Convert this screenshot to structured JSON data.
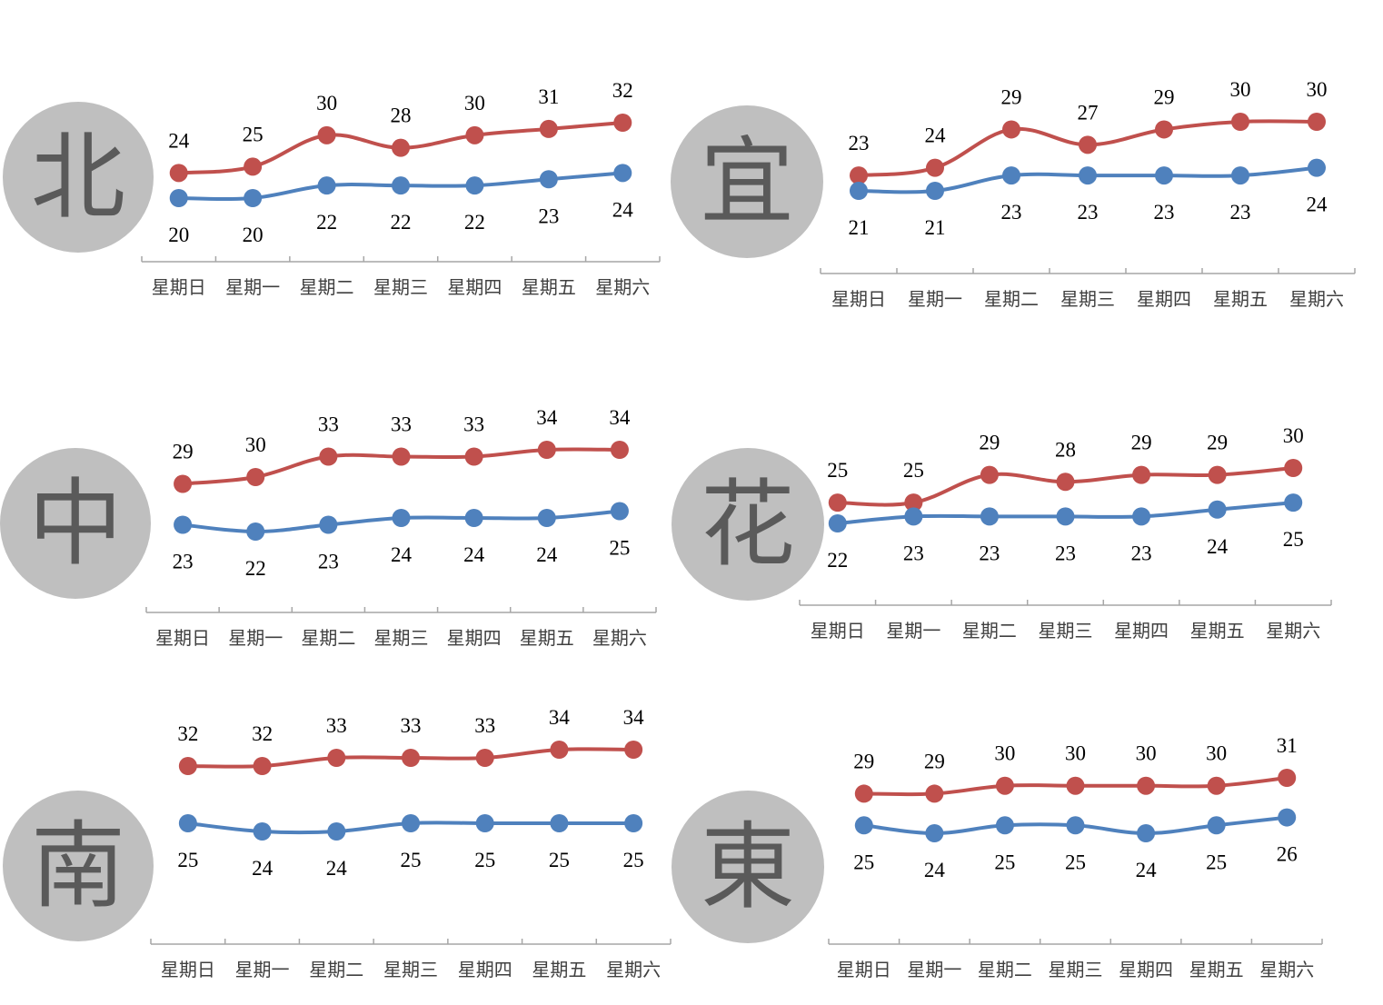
{
  "colors": {
    "high": "#c0504d",
    "low": "#4f81bd",
    "circle": "#bfbfbf",
    "circle_text": "#5a5a5a",
    "axis": "#a6a6a6",
    "label_text": "#000000",
    "tick_text": "#404040"
  },
  "weekdays": [
    "星期日",
    "星期一",
    "星期二",
    "星期三",
    "星期四",
    "星期五",
    "星期六"
  ],
  "chart_data": [
    {
      "type": "line",
      "region": "北",
      "categories": [
        "星期日",
        "星期一",
        "星期二",
        "星期三",
        "星期四",
        "星期五",
        "星期六"
      ],
      "series": [
        {
          "values": [
            24,
            25,
            30,
            28,
            30,
            31,
            32
          ]
        },
        {
          "values": [
            20,
            20,
            22,
            22,
            22,
            23,
            24
          ]
        }
      ],
      "ylim": [
        18,
        34
      ],
      "grid": false,
      "smooth": true
    },
    {
      "type": "line",
      "region": "宜",
      "categories": [
        "星期日",
        "星期一",
        "星期二",
        "星期三",
        "星期四",
        "星期五",
        "星期六"
      ],
      "series": [
        {
          "values": [
            23,
            24,
            29,
            27,
            29,
            30,
            30
          ]
        },
        {
          "values": [
            21,
            21,
            23,
            23,
            23,
            23,
            24
          ]
        }
      ],
      "ylim": [
        18,
        34
      ],
      "grid": false,
      "smooth": true
    },
    {
      "type": "line",
      "region": "中",
      "categories": [
        "星期日",
        "星期一",
        "星期二",
        "星期三",
        "星期四",
        "星期五",
        "星期六"
      ],
      "series": [
        {
          "values": [
            29,
            30,
            33,
            33,
            33,
            34,
            34
          ]
        },
        {
          "values": [
            23,
            22,
            23,
            24,
            24,
            24,
            25
          ]
        }
      ],
      "ylim": [
        18,
        38
      ],
      "grid": false,
      "smooth": true
    },
    {
      "type": "line",
      "region": "花",
      "categories": [
        "星期日",
        "星期一",
        "星期二",
        "星期三",
        "星期四",
        "星期五",
        "星期六"
      ],
      "series": [
        {
          "values": [
            25,
            25,
            29,
            28,
            29,
            29,
            30
          ]
        },
        {
          "values": [
            22,
            23,
            23,
            23,
            23,
            24,
            25
          ]
        }
      ],
      "ylim": [
        16,
        34
      ],
      "grid": false,
      "smooth": true
    },
    {
      "type": "line",
      "region": "南",
      "categories": [
        "星期日",
        "星期一",
        "星期二",
        "星期三",
        "星期四",
        "星期五",
        "星期六"
      ],
      "series": [
        {
          "values": [
            32,
            32,
            33,
            33,
            33,
            34,
            34
          ]
        },
        {
          "values": [
            25,
            24,
            24,
            25,
            25,
            25,
            25
          ]
        }
      ],
      "ylim": [
        14,
        36
      ],
      "grid": false,
      "smooth": true
    },
    {
      "type": "line",
      "region": "東",
      "categories": [
        "星期日",
        "星期一",
        "星期二",
        "星期三",
        "星期四",
        "星期五",
        "星期六"
      ],
      "series": [
        {
          "values": [
            29,
            29,
            30,
            30,
            30,
            30,
            31
          ]
        },
        {
          "values": [
            25,
            24,
            25,
            25,
            24,
            25,
            26
          ]
        }
      ],
      "ylim": [
        10,
        36
      ],
      "grid": false,
      "smooth": true
    }
  ]
}
